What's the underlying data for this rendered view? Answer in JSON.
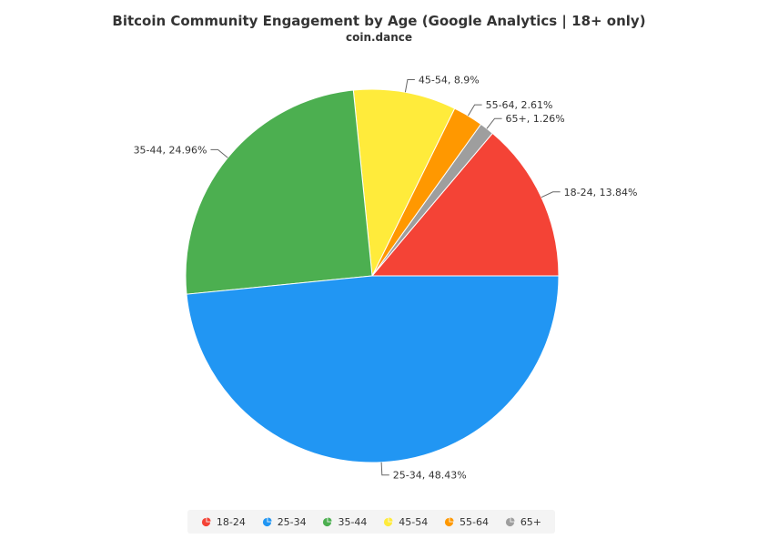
{
  "chart_data": {
    "type": "pie",
    "title": "Bitcoin Community Engagement by Age (Google Analytics | 18+ only)",
    "subtitle": "coin.dance",
    "slices": [
      {
        "name": "18-24",
        "value": 13.84,
        "label": "18-24, 13.84%",
        "color": "#f44336"
      },
      {
        "name": "65+",
        "value": 1.26,
        "label": "65+, 1.26%",
        "color": "#9e9e9e"
      },
      {
        "name": "55-64",
        "value": 2.61,
        "label": "55-64, 2.61%",
        "color": "#ff9800"
      },
      {
        "name": "45-54",
        "value": 8.9,
        "label": "45-54, 8.9%",
        "color": "#ffeb3b"
      },
      {
        "name": "35-44",
        "value": 24.96,
        "label": "35-44, 24.96%",
        "color": "#4caf50"
      },
      {
        "name": "25-34",
        "value": 48.43,
        "label": "25-34, 48.43%",
        "color": "#2196f3"
      }
    ],
    "legend": [
      {
        "name": "18-24",
        "color": "#f44336"
      },
      {
        "name": "25-34",
        "color": "#2196f3"
      },
      {
        "name": "35-44",
        "color": "#4caf50"
      },
      {
        "name": "45-54",
        "color": "#ffeb3b"
      },
      {
        "name": "55-64",
        "color": "#ff9800"
      },
      {
        "name": "65+",
        "color": "#9e9e9e"
      }
    ],
    "legend_position": "bottom"
  }
}
